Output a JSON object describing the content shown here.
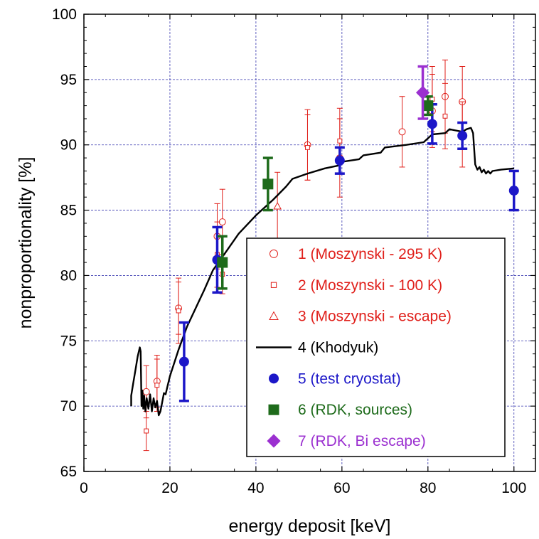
{
  "chart_data": {
    "type": "scatter",
    "xlabel": "energy deposit [keV]",
    "ylabel": "nonproportionality [%]",
    "xlim": [
      0,
      105
    ],
    "ylim": [
      65,
      100
    ],
    "xticks": [
      0,
      20,
      40,
      60,
      80,
      100
    ],
    "yticks": [
      65,
      70,
      75,
      80,
      85,
      90,
      95,
      100
    ],
    "grid": true,
    "legend_position": "bottom-right",
    "series": [
      {
        "name": "1 (Moszynski - 295 K)",
        "marker": "open-circle",
        "color": "#e0201b",
        "points": [
          {
            "x": 14.5,
            "y": 71.1,
            "err": 2.0
          },
          {
            "x": 17.0,
            "y": 71.9,
            "err": 2.0
          },
          {
            "x": 22.0,
            "y": 77.5,
            "err": 2.0
          },
          {
            "x": 31.0,
            "y": 83.0,
            "err": 2.5
          },
          {
            "x": 32.2,
            "y": 84.1,
            "err": 2.5
          },
          {
            "x": 52.0,
            "y": 90.0,
            "err": 2.7
          },
          {
            "x": 59.5,
            "y": 89.0,
            "err": 3.0
          },
          {
            "x": 74.0,
            "y": 91.0,
            "err": 2.7
          },
          {
            "x": 81.0,
            "y": 92.6,
            "err": 2.8
          },
          {
            "x": 84.0,
            "y": 93.7,
            "err": 2.8
          },
          {
            "x": 88.0,
            "y": 93.3,
            "err": 2.7
          }
        ]
      },
      {
        "name": "2 (Moszynski - 100 K)",
        "marker": "open-square",
        "color": "#e0201b",
        "points": [
          {
            "x": 14.5,
            "y": 68.1,
            "err": 1.5
          },
          {
            "x": 17.0,
            "y": 71.6,
            "err": 2.0
          },
          {
            "x": 22.0,
            "y": 77.3,
            "err": 2.5
          },
          {
            "x": 31.0,
            "y": 81.6,
            "err": 2.5
          },
          {
            "x": 32.2,
            "y": 80.1,
            "err": 1.5
          },
          {
            "x": 52.0,
            "y": 89.8,
            "err": 2.5
          },
          {
            "x": 59.5,
            "y": 90.3,
            "err": 2.5
          },
          {
            "x": 81.0,
            "y": 93.5,
            "err": 2.5
          },
          {
            "x": 84.0,
            "y": 92.2,
            "err": 2.5
          },
          {
            "x": 88.0,
            "y": 90.8,
            "err": 2.5
          }
        ]
      },
      {
        "name": "3 (Moszynski - escape)",
        "marker": "open-triangle",
        "color": "#e0201b",
        "points": [
          {
            "x": 45.0,
            "y": 85.3,
            "err": 2.6
          }
        ]
      },
      {
        "name": "4 (Khodyuk)",
        "marker": "line",
        "color": "#000000",
        "points": [
          {
            "x": 11.0,
            "y": 70.0
          },
          {
            "x": 11.0,
            "y": 70.8
          },
          {
            "x": 11.5,
            "y": 71.8
          },
          {
            "x": 12.0,
            "y": 72.8
          },
          {
            "x": 12.5,
            "y": 73.8
          },
          {
            "x": 13.0,
            "y": 74.5
          },
          {
            "x": 13.2,
            "y": 74.2
          },
          {
            "x": 13.4,
            "y": 70.0
          },
          {
            "x": 13.6,
            "y": 71.2
          },
          {
            "x": 13.8,
            "y": 69.8
          },
          {
            "x": 14.0,
            "y": 70.8
          },
          {
            "x": 14.3,
            "y": 69.6
          },
          {
            "x": 14.6,
            "y": 70.6
          },
          {
            "x": 15.0,
            "y": 69.8
          },
          {
            "x": 15.4,
            "y": 70.9
          },
          {
            "x": 15.8,
            "y": 69.6
          },
          {
            "x": 16.2,
            "y": 70.6
          },
          {
            "x": 16.6,
            "y": 69.9
          },
          {
            "x": 17.0,
            "y": 70.4
          },
          {
            "x": 17.4,
            "y": 69.3
          },
          {
            "x": 17.8,
            "y": 69.6
          },
          {
            "x": 18.2,
            "y": 70.3
          },
          {
            "x": 18.6,
            "y": 71.0
          },
          {
            "x": 19.0,
            "y": 70.9
          },
          {
            "x": 19.5,
            "y": 71.6
          },
          {
            "x": 20.0,
            "y": 72.3
          },
          {
            "x": 22.0,
            "y": 74.3
          },
          {
            "x": 24.0,
            "y": 76.1
          },
          {
            "x": 26.0,
            "y": 77.5
          },
          {
            "x": 28.0,
            "y": 78.9
          },
          {
            "x": 30.0,
            "y": 80.4
          },
          {
            "x": 33.0,
            "y": 81.8
          },
          {
            "x": 36.0,
            "y": 83.2
          },
          {
            "x": 40.0,
            "y": 84.6
          },
          {
            "x": 44.0,
            "y": 85.8
          },
          {
            "x": 47.0,
            "y": 86.8
          },
          {
            "x": 48.5,
            "y": 87.4
          },
          {
            "x": 52.0,
            "y": 87.8
          },
          {
            "x": 56.0,
            "y": 88.2
          },
          {
            "x": 59.0,
            "y": 88.4
          },
          {
            "x": 60.0,
            "y": 88.7
          },
          {
            "x": 64.0,
            "y": 88.9
          },
          {
            "x": 65.0,
            "y": 89.2
          },
          {
            "x": 69.0,
            "y": 89.4
          },
          {
            "x": 70.0,
            "y": 89.8
          },
          {
            "x": 75.0,
            "y": 90.0
          },
          {
            "x": 79.0,
            "y": 90.2
          },
          {
            "x": 80.0,
            "y": 90.5
          },
          {
            "x": 81.0,
            "y": 90.8
          },
          {
            "x": 84.0,
            "y": 90.9
          },
          {
            "x": 85.0,
            "y": 91.2
          },
          {
            "x": 88.0,
            "y": 91.0
          },
          {
            "x": 89.0,
            "y": 91.2
          },
          {
            "x": 90.0,
            "y": 91.3
          },
          {
            "x": 90.5,
            "y": 90.9
          },
          {
            "x": 91.0,
            "y": 88.5
          },
          {
            "x": 91.5,
            "y": 88.1
          },
          {
            "x": 92.0,
            "y": 88.3
          },
          {
            "x": 92.5,
            "y": 87.9
          },
          {
            "x": 93.0,
            "y": 88.1
          },
          {
            "x": 93.5,
            "y": 87.8
          },
          {
            "x": 94.0,
            "y": 88.0
          },
          {
            "x": 94.5,
            "y": 87.8
          },
          {
            "x": 95.0,
            "y": 88.0
          },
          {
            "x": 97.0,
            "y": 88.1
          },
          {
            "x": 100.0,
            "y": 88.2
          }
        ]
      },
      {
        "name": "5 (test cryostat)",
        "marker": "filled-circle",
        "color": "#1c17c8",
        "points": [
          {
            "x": 23.3,
            "y": 73.4,
            "err": 3.0
          },
          {
            "x": 31.0,
            "y": 81.2,
            "err": 2.5
          },
          {
            "x": 59.5,
            "y": 88.8,
            "err": 1.0
          },
          {
            "x": 81.0,
            "y": 91.6,
            "err": 1.5
          },
          {
            "x": 88.0,
            "y": 90.7,
            "err": 1.0
          },
          {
            "x": 100.0,
            "y": 86.5,
            "err": 1.5
          }
        ]
      },
      {
        "name": "6 (RDK, sources)",
        "marker": "filled-square",
        "color": "#1e6b1b",
        "points": [
          {
            "x": 32.2,
            "y": 81.0,
            "err": 2.0
          },
          {
            "x": 42.8,
            "y": 87.0,
            "err": 2.0
          },
          {
            "x": 80.0,
            "y": 93.0,
            "err": 0.7
          }
        ]
      },
      {
        "name": "7 (RDK, Bi escape)",
        "marker": "filled-diamond",
        "color": "#9b30d0",
        "points": [
          {
            "x": 78.8,
            "y": 94.0,
            "err": 2.0
          }
        ]
      }
    ]
  }
}
